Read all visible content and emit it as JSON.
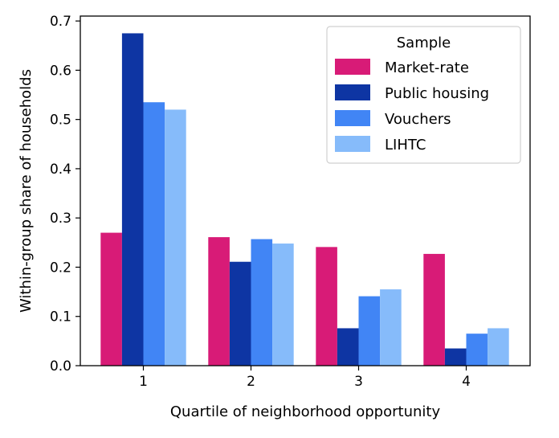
{
  "chart_data": {
    "type": "bar",
    "xlabel": "Quartile of neighborhood opportunity",
    "ylabel": "Within-group share of households",
    "categories": [
      "1",
      "2",
      "3",
      "4"
    ],
    "ylim": [
      0,
      0.71
    ],
    "yticks": [
      "0.0",
      "0.1",
      "0.2",
      "0.3",
      "0.4",
      "0.5",
      "0.6",
      "0.7"
    ],
    "legend": {
      "title": "Sample",
      "placement": "top-right"
    },
    "grid": false,
    "series": [
      {
        "name": "Market-rate",
        "color": "#d81b77",
        "values": [
          0.27,
          0.261,
          0.241,
          0.227
        ]
      },
      {
        "name": "Public housing",
        "color": "#0e35a3",
        "values": [
          0.675,
          0.211,
          0.076,
          0.035
        ]
      },
      {
        "name": "Vouchers",
        "color": "#4185f5",
        "values": [
          0.535,
          0.257,
          0.141,
          0.065
        ]
      },
      {
        "name": "LIHTC",
        "color": "#86bbfa",
        "values": [
          0.52,
          0.248,
          0.155,
          0.076
        ]
      }
    ]
  }
}
